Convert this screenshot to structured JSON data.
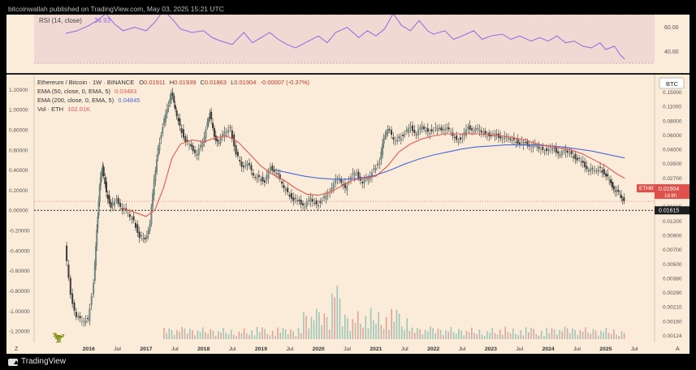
{
  "header": {
    "published_line": "bitcoinwallah published on TradingView.com, May 03, 2025 15:21 UTC"
  },
  "footer": {
    "brand": "TradingView"
  },
  "colors": {
    "background": "#faecd9",
    "candle_up": "#6e8a82",
    "candle_down": "#3a3a3a",
    "ema50": "#e05a52",
    "ema200": "#4a68d8",
    "rsi_line": "#8f6ae0",
    "rsi_band": "#eed8d2",
    "vol_up": "#8fbfb4",
    "vol_down": "#e8908a",
    "price_tag": "#e0514c",
    "dark_tag": "#1e1e1e"
  },
  "chart_data": {
    "type": "candlestick",
    "symbol": "Ethereum / Bitcoin · 1W · BINANCE",
    "ohlc": {
      "labels": [
        "O",
        "H",
        "C",
        "L",
        "C"
      ],
      "open": "0.01911",
      "high": "0.01939",
      "low": "0.01863",
      "close": "0.01904",
      "change": "-0.00007 (-0.37%)"
    },
    "indicators": [
      {
        "name": "EMA (50, close, 0, EMA, 5)",
        "value": "0.03483",
        "color": "#e05a52"
      },
      {
        "name": "EMA (200, close, 0, EMA, 5)",
        "value": "0.04845",
        "color": "#4a68d8"
      },
      {
        "name": "Vol · ETH",
        "value": "102.01K",
        "color": "#e05a52"
      }
    ],
    "rsi": {
      "label": "RSI (14, close)",
      "value": "24.93",
      "ticks": [
        "60.00",
        "40.00"
      ],
      "series": [
        [
          2015.6,
          55
        ],
        [
          2015.8,
          58
        ],
        [
          2016.0,
          64
        ],
        [
          2016.15,
          70
        ],
        [
          2016.3,
          78
        ],
        [
          2016.45,
          66
        ],
        [
          2016.6,
          58
        ],
        [
          2016.8,
          62
        ],
        [
          2017.0,
          58
        ],
        [
          2017.15,
          68
        ],
        [
          2017.3,
          82
        ],
        [
          2017.45,
          72
        ],
        [
          2017.6,
          60
        ],
        [
          2017.8,
          56
        ],
        [
          2018.0,
          58
        ],
        [
          2018.15,
          50
        ],
        [
          2018.3,
          46
        ],
        [
          2018.5,
          42
        ],
        [
          2018.7,
          56
        ],
        [
          2018.85,
          44
        ],
        [
          2019.0,
          50
        ],
        [
          2019.15,
          56
        ],
        [
          2019.3,
          48
        ],
        [
          2019.45,
          42
        ],
        [
          2019.6,
          38
        ],
        [
          2019.8,
          45
        ],
        [
          2020.0,
          52
        ],
        [
          2020.15,
          44
        ],
        [
          2020.3,
          56
        ],
        [
          2020.5,
          62
        ],
        [
          2020.7,
          50
        ],
        [
          2020.85,
          58
        ],
        [
          2021.0,
          52
        ],
        [
          2021.15,
          60
        ],
        [
          2021.3,
          78
        ],
        [
          2021.45,
          64
        ],
        [
          2021.6,
          58
        ],
        [
          2021.75,
          70
        ],
        [
          2021.9,
          58
        ],
        [
          2022.0,
          54
        ],
        [
          2022.2,
          58
        ],
        [
          2022.35,
          48
        ],
        [
          2022.5,
          52
        ],
        [
          2022.7,
          58
        ],
        [
          2022.85,
          48
        ],
        [
          2023.0,
          52
        ],
        [
          2023.2,
          54
        ],
        [
          2023.35,
          48
        ],
        [
          2023.5,
          52
        ],
        [
          2023.7,
          46
        ],
        [
          2023.85,
          50
        ],
        [
          2024.0,
          46
        ],
        [
          2024.15,
          52
        ],
        [
          2024.3,
          44
        ],
        [
          2024.45,
          46
        ],
        [
          2024.6,
          40
        ],
        [
          2024.75,
          38
        ],
        [
          2024.9,
          44
        ],
        [
          2025.0,
          36
        ],
        [
          2025.15,
          40
        ],
        [
          2025.25,
          30
        ],
        [
          2025.33,
          24.93
        ]
      ],
      "rsi_axis_range": [
        20,
        75
      ]
    },
    "left_axis": {
      "ticks": [
        "1.20000",
        "1.00000",
        "0.80000",
        "0.60000",
        "0.40000",
        "0.20000",
        "0.00000",
        "-0.20000",
        "-0.40000",
        "-0.60000",
        "-0.80000",
        "-1.00000",
        "-1.20000"
      ],
      "values": [
        1.2,
        1.0,
        0.8,
        0.6,
        0.4,
        0.2,
        0.0,
        -0.2,
        -0.4,
        -0.6,
        -0.8,
        -1.0,
        -1.2
      ],
      "range": [
        -1.28,
        1.3
      ]
    },
    "right_axis": {
      "currency_label": "BTC",
      "ticks": [
        "0.15000",
        "0.11000",
        "0.08000",
        "0.06000",
        "0.04000",
        "0.03500",
        "0.02700",
        "0.02100",
        "0.01615",
        "0.01200",
        "0.00900",
        "0.00700",
        "0.00500",
        "0.00380",
        "0.00290",
        "0.00210",
        "0.00160",
        "0.00124"
      ],
      "last_price_tag": "ETHBTC",
      "last_price": "0.01904",
      "countdown": "1d 8h",
      "reference_price": "0.01615"
    },
    "x_axis": {
      "labels": [
        "2016",
        "Jul",
        "2017",
        "Jul",
        "2018",
        "Jul",
        "2019",
        "Jul",
        "2020",
        "Jul",
        "2021",
        "Jul",
        "2022",
        "Jul",
        "2023",
        "Jul",
        "2024",
        "Jul",
        "2025",
        "Jul"
      ],
      "values": [
        2016.0,
        2016.5,
        2017.0,
        2017.5,
        2018.0,
        2018.5,
        2019.0,
        2019.5,
        2020.0,
        2020.5,
        2021.0,
        2021.5,
        2022.0,
        2022.5,
        2023.0,
        2023.5,
        2024.0,
        2024.5,
        2025.0,
        2025.5
      ],
      "range": [
        2015.05,
        2025.85
      ]
    },
    "price_series": [
      [
        2015.6,
        -0.35
      ],
      [
        2015.7,
        -0.85
      ],
      [
        2015.8,
        -1.05
      ],
      [
        2015.9,
        -1.12
      ],
      [
        2016.0,
        -1.08
      ],
      [
        2016.1,
        -0.7
      ],
      [
        2016.15,
        -0.2
      ],
      [
        2016.2,
        0.25
      ],
      [
        2016.25,
        0.42
      ],
      [
        2016.32,
        0.18
      ],
      [
        2016.4,
        0.05
      ],
      [
        2016.5,
        0.1
      ],
      [
        2016.6,
        0.02
      ],
      [
        2016.7,
        -0.05
      ],
      [
        2016.8,
        -0.1
      ],
      [
        2016.9,
        -0.25
      ],
      [
        2017.0,
        -0.3
      ],
      [
        2017.08,
        -0.12
      ],
      [
        2017.15,
        0.28
      ],
      [
        2017.22,
        0.62
      ],
      [
        2017.3,
        0.85
      ],
      [
        2017.38,
        1.0
      ],
      [
        2017.45,
        1.18
      ],
      [
        2017.52,
        0.98
      ],
      [
        2017.6,
        0.84
      ],
      [
        2017.7,
        0.7
      ],
      [
        2017.8,
        0.62
      ],
      [
        2017.9,
        0.56
      ],
      [
        2018.0,
        0.66
      ],
      [
        2018.08,
        0.88
      ],
      [
        2018.12,
        0.98
      ],
      [
        2018.2,
        0.72
      ],
      [
        2018.28,
        0.68
      ],
      [
        2018.38,
        0.76
      ],
      [
        2018.48,
        0.82
      ],
      [
        2018.58,
        0.58
      ],
      [
        2018.68,
        0.42
      ],
      [
        2018.78,
        0.48
      ],
      [
        2018.88,
        0.32
      ],
      [
        2018.98,
        0.33
      ],
      [
        2019.08,
        0.3
      ],
      [
        2019.18,
        0.42
      ],
      [
        2019.28,
        0.38
      ],
      [
        2019.38,
        0.24
      ],
      [
        2019.48,
        0.18
      ],
      [
        2019.58,
        0.12
      ],
      [
        2019.68,
        0.08
      ],
      [
        2019.78,
        0.05
      ],
      [
        2019.88,
        0.1
      ],
      [
        2019.98,
        0.06
      ],
      [
        2020.08,
        0.12
      ],
      [
        2020.18,
        0.15
      ],
      [
        2020.28,
        0.28
      ],
      [
        2020.38,
        0.3
      ],
      [
        2020.48,
        0.22
      ],
      [
        2020.58,
        0.36
      ],
      [
        2020.68,
        0.36
      ],
      [
        2020.78,
        0.28
      ],
      [
        2020.88,
        0.3
      ],
      [
        2020.98,
        0.42
      ],
      [
        2021.08,
        0.5
      ],
      [
        2021.15,
        0.72
      ],
      [
        2021.22,
        0.82
      ],
      [
        2021.32,
        0.68
      ],
      [
        2021.42,
        0.72
      ],
      [
        2021.52,
        0.78
      ],
      [
        2021.62,
        0.82
      ],
      [
        2021.72,
        0.76
      ],
      [
        2021.82,
        0.82
      ],
      [
        2021.92,
        0.78
      ],
      [
        2022.02,
        0.82
      ],
      [
        2022.12,
        0.8
      ],
      [
        2022.22,
        0.82
      ],
      [
        2022.32,
        0.76
      ],
      [
        2022.42,
        0.7
      ],
      [
        2022.52,
        0.74
      ],
      [
        2022.62,
        0.82
      ],
      [
        2022.72,
        0.8
      ],
      [
        2022.82,
        0.78
      ],
      [
        2022.92,
        0.76
      ],
      [
        2023.02,
        0.76
      ],
      [
        2023.12,
        0.74
      ],
      [
        2023.22,
        0.72
      ],
      [
        2023.32,
        0.7
      ],
      [
        2023.42,
        0.7
      ],
      [
        2023.52,
        0.68
      ],
      [
        2023.62,
        0.66
      ],
      [
        2023.72,
        0.64
      ],
      [
        2023.82,
        0.62
      ],
      [
        2023.92,
        0.6
      ],
      [
        2024.02,
        0.62
      ],
      [
        2024.12,
        0.6
      ],
      [
        2024.22,
        0.56
      ],
      [
        2024.32,
        0.58
      ],
      [
        2024.42,
        0.56
      ],
      [
        2024.52,
        0.52
      ],
      [
        2024.62,
        0.46
      ],
      [
        2024.72,
        0.4
      ],
      [
        2024.82,
        0.38
      ],
      [
        2024.92,
        0.42
      ],
      [
        2025.02,
        0.36
      ],
      [
        2025.1,
        0.26
      ],
      [
        2025.18,
        0.2
      ],
      [
        2025.26,
        0.14
      ],
      [
        2025.33,
        0.09
      ]
    ],
    "ema50_series": [
      [
        2016.6,
        0.02
      ],
      [
        2016.8,
        -0.02
      ],
      [
        2017.0,
        -0.06
      ],
      [
        2017.15,
        0.0
      ],
      [
        2017.3,
        0.22
      ],
      [
        2017.45,
        0.52
      ],
      [
        2017.6,
        0.66
      ],
      [
        2017.8,
        0.7
      ],
      [
        2018.0,
        0.68
      ],
      [
        2018.2,
        0.72
      ],
      [
        2018.4,
        0.74
      ],
      [
        2018.6,
        0.68
      ],
      [
        2018.8,
        0.56
      ],
      [
        2019.0,
        0.44
      ],
      [
        2019.2,
        0.36
      ],
      [
        2019.4,
        0.3
      ],
      [
        2019.6,
        0.22
      ],
      [
        2019.8,
        0.16
      ],
      [
        2020.0,
        0.15
      ],
      [
        2020.2,
        0.18
      ],
      [
        2020.4,
        0.24
      ],
      [
        2020.6,
        0.3
      ],
      [
        2020.8,
        0.32
      ],
      [
        2021.0,
        0.34
      ],
      [
        2021.2,
        0.44
      ],
      [
        2021.4,
        0.58
      ],
      [
        2021.6,
        0.66
      ],
      [
        2021.8,
        0.71
      ],
      [
        2022.0,
        0.74
      ],
      [
        2022.2,
        0.76
      ],
      [
        2022.4,
        0.76
      ],
      [
        2022.6,
        0.76
      ],
      [
        2022.8,
        0.76
      ],
      [
        2023.0,
        0.75
      ],
      [
        2023.2,
        0.74
      ],
      [
        2023.4,
        0.72
      ],
      [
        2023.6,
        0.7
      ],
      [
        2023.8,
        0.66
      ],
      [
        2024.0,
        0.64
      ],
      [
        2024.2,
        0.62
      ],
      [
        2024.4,
        0.6
      ],
      [
        2024.6,
        0.56
      ],
      [
        2024.8,
        0.5
      ],
      [
        2025.0,
        0.44
      ],
      [
        2025.2,
        0.36
      ],
      [
        2025.33,
        0.32
      ]
    ],
    "ema200_series": [
      [
        2019.25,
        0.4
      ],
      [
        2019.5,
        0.37
      ],
      [
        2019.75,
        0.34
      ],
      [
        2020.0,
        0.32
      ],
      [
        2020.25,
        0.31
      ],
      [
        2020.5,
        0.31
      ],
      [
        2020.75,
        0.32
      ],
      [
        2021.0,
        0.35
      ],
      [
        2021.25,
        0.4
      ],
      [
        2021.5,
        0.46
      ],
      [
        2021.75,
        0.51
      ],
      [
        2022.0,
        0.55
      ],
      [
        2022.25,
        0.58
      ],
      [
        2022.5,
        0.61
      ],
      [
        2022.75,
        0.63
      ],
      [
        2023.0,
        0.64
      ],
      [
        2023.25,
        0.65
      ],
      [
        2023.5,
        0.65
      ],
      [
        2023.75,
        0.65
      ],
      [
        2024.0,
        0.64
      ],
      [
        2024.25,
        0.63
      ],
      [
        2024.5,
        0.61
      ],
      [
        2024.75,
        0.59
      ],
      [
        2025.0,
        0.56
      ],
      [
        2025.33,
        0.52
      ]
    ]
  }
}
